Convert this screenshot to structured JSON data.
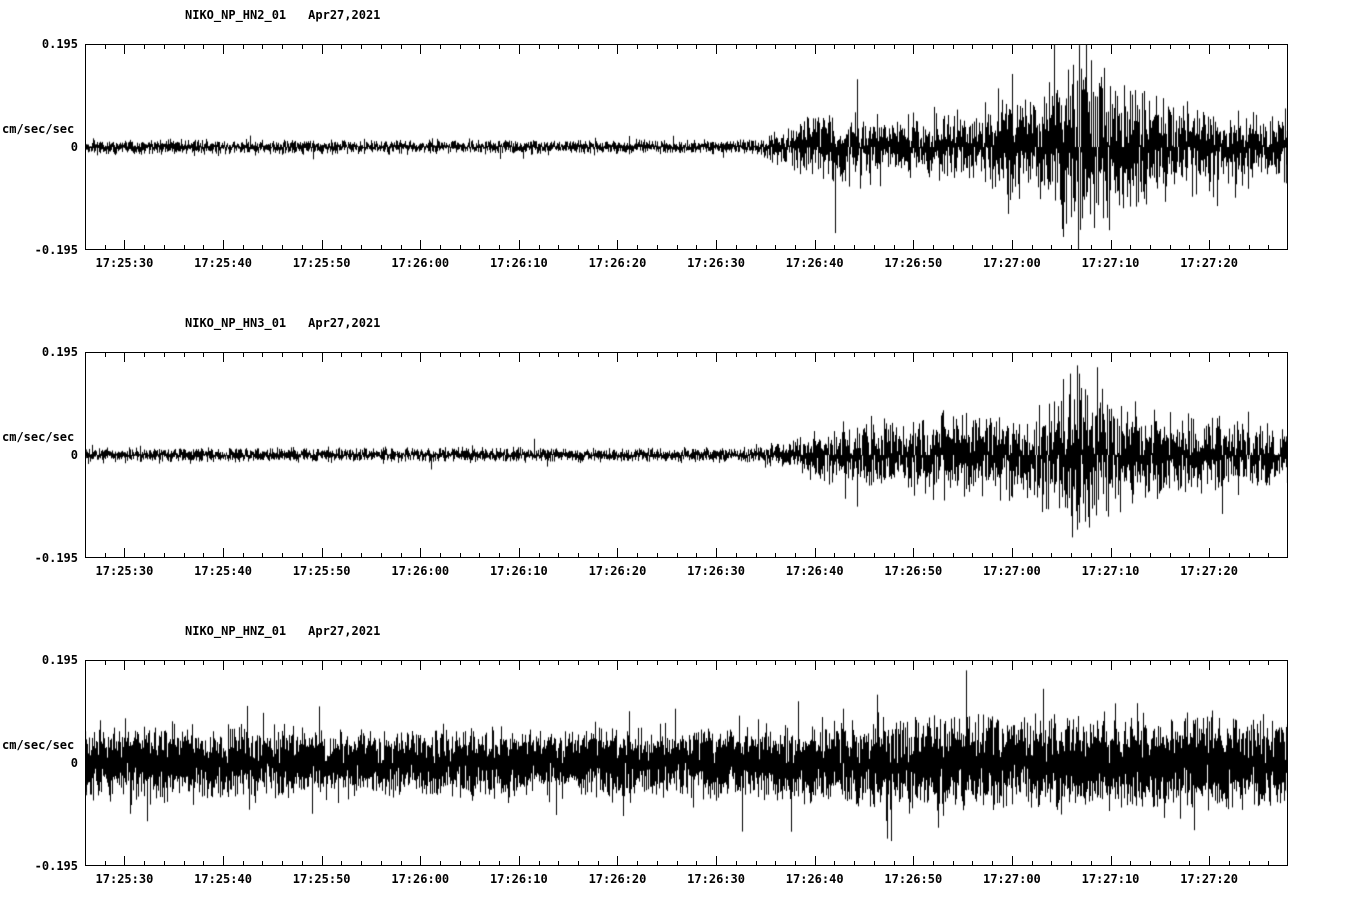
{
  "page": {
    "background": "#ffffff",
    "text_color": "#000000"
  },
  "chart_data": [
    {
      "type": "line",
      "subtype": "seismogram",
      "station": "NIKO_NP_HN2_01",
      "date_label": "Apr27,2021",
      "ylabel": "cm/sec/sec",
      "ylim": [
        -0.195,
        0.195
      ],
      "yticks": [
        {
          "value": 0.195,
          "label": "0.195"
        },
        {
          "value": 0,
          "label": "0"
        },
        {
          "value": -0.195,
          "label": "-0.195"
        }
      ],
      "x_window": {
        "start_seconds": 62726,
        "end_seconds": 62848
      },
      "xtick_minor_interval_seconds": 2,
      "xtick_major_interval_seconds": 10,
      "xtick_labels": [
        {
          "seconds": 62730,
          "label": "17:25:30"
        },
        {
          "seconds": 62740,
          "label": "17:25:40"
        },
        {
          "seconds": 62750,
          "label": "17:25:50"
        },
        {
          "seconds": 62760,
          "label": "17:26:00"
        },
        {
          "seconds": 62770,
          "label": "17:26:10"
        },
        {
          "seconds": 62780,
          "label": "17:26:20"
        },
        {
          "seconds": 62790,
          "label": "17:26:30"
        },
        {
          "seconds": 62800,
          "label": "17:26:40"
        },
        {
          "seconds": 62810,
          "label": "17:26:50"
        },
        {
          "seconds": 62820,
          "label": "17:27:00"
        },
        {
          "seconds": 62830,
          "label": "17:27:10"
        },
        {
          "seconds": 62840,
          "label": "17:27:20"
        }
      ],
      "trace_color": "#000000",
      "envelope_points": [
        [
          0.0,
          0.01
        ],
        [
          0.54,
          0.01
        ],
        [
          0.565,
          0.013
        ],
        [
          0.585,
          0.03
        ],
        [
          0.6,
          0.048
        ],
        [
          0.625,
          0.052
        ],
        [
          0.66,
          0.042
        ],
        [
          0.7,
          0.045
        ],
        [
          0.73,
          0.05
        ],
        [
          0.762,
          0.055
        ],
        [
          0.77,
          0.11
        ],
        [
          0.778,
          0.06
        ],
        [
          0.795,
          0.075
        ],
        [
          0.81,
          0.12
        ],
        [
          0.822,
          0.17
        ],
        [
          0.838,
          0.13
        ],
        [
          0.855,
          0.095
        ],
        [
          0.885,
          0.075
        ],
        [
          0.92,
          0.06
        ],
        [
          0.96,
          0.052
        ],
        [
          1.0,
          0.05
        ]
      ]
    },
    {
      "type": "line",
      "subtype": "seismogram",
      "station": "NIKO_NP_HN3_01",
      "date_label": "Apr27,2021",
      "ylabel": "cm/sec/sec",
      "ylim": [
        -0.195,
        0.195
      ],
      "yticks": [
        {
          "value": 0.195,
          "label": "0.195"
        },
        {
          "value": 0,
          "label": "0"
        },
        {
          "value": -0.195,
          "label": "-0.195"
        }
      ],
      "x_window": {
        "start_seconds": 62726,
        "end_seconds": 62848
      },
      "xtick_minor_interval_seconds": 2,
      "xtick_major_interval_seconds": 10,
      "xtick_labels": [
        {
          "seconds": 62730,
          "label": "17:25:30"
        },
        {
          "seconds": 62740,
          "label": "17:25:40"
        },
        {
          "seconds": 62750,
          "label": "17:25:50"
        },
        {
          "seconds": 62760,
          "label": "17:26:00"
        },
        {
          "seconds": 62770,
          "label": "17:26:10"
        },
        {
          "seconds": 62780,
          "label": "17:26:20"
        },
        {
          "seconds": 62790,
          "label": "17:26:30"
        },
        {
          "seconds": 62800,
          "label": "17:26:40"
        },
        {
          "seconds": 62810,
          "label": "17:26:50"
        },
        {
          "seconds": 62820,
          "label": "17:27:00"
        },
        {
          "seconds": 62830,
          "label": "17:27:10"
        },
        {
          "seconds": 62840,
          "label": "17:27:20"
        }
      ],
      "trace_color": "#000000",
      "envelope_points": [
        [
          0.0,
          0.01
        ],
        [
          0.54,
          0.01
        ],
        [
          0.57,
          0.015
        ],
        [
          0.6,
          0.03
        ],
        [
          0.63,
          0.042
        ],
        [
          0.67,
          0.048
        ],
        [
          0.71,
          0.052
        ],
        [
          0.75,
          0.058
        ],
        [
          0.79,
          0.062
        ],
        [
          0.812,
          0.085
        ],
        [
          0.824,
          0.13
        ],
        [
          0.836,
          0.09
        ],
        [
          0.86,
          0.07
        ],
        [
          0.9,
          0.055
        ],
        [
          0.95,
          0.048
        ],
        [
          1.0,
          0.045
        ]
      ]
    },
    {
      "type": "line",
      "subtype": "seismogram",
      "station": "NIKO_NP_HNZ_01",
      "date_label": "Apr27,2021",
      "ylabel": "cm/sec/sec",
      "ylim": [
        -0.195,
        0.195
      ],
      "yticks": [
        {
          "value": 0.195,
          "label": "0.195"
        },
        {
          "value": 0,
          "label": "0"
        },
        {
          "value": -0.195,
          "label": "-0.195"
        }
      ],
      "x_window": {
        "start_seconds": 62726,
        "end_seconds": 62848
      },
      "xtick_minor_interval_seconds": 2,
      "xtick_major_interval_seconds": 10,
      "xtick_labels": [
        {
          "seconds": 62730,
          "label": "17:25:30"
        },
        {
          "seconds": 62740,
          "label": "17:25:40"
        },
        {
          "seconds": 62750,
          "label": "17:25:50"
        },
        {
          "seconds": 62760,
          "label": "17:26:00"
        },
        {
          "seconds": 62770,
          "label": "17:26:10"
        },
        {
          "seconds": 62780,
          "label": "17:26:20"
        },
        {
          "seconds": 62790,
          "label": "17:26:30"
        },
        {
          "seconds": 62800,
          "label": "17:26:40"
        },
        {
          "seconds": 62810,
          "label": "17:26:50"
        },
        {
          "seconds": 62820,
          "label": "17:27:00"
        },
        {
          "seconds": 62830,
          "label": "17:27:10"
        },
        {
          "seconds": 62840,
          "label": "17:27:20"
        }
      ],
      "trace_color": "#000000",
      "envelope_points": [
        [
          0.0,
          0.048
        ],
        [
          0.03,
          0.055
        ],
        [
          0.06,
          0.05
        ],
        [
          0.15,
          0.046
        ],
        [
          0.3,
          0.044
        ],
        [
          0.45,
          0.046
        ],
        [
          0.55,
          0.05
        ],
        [
          0.62,
          0.058
        ],
        [
          0.7,
          0.062
        ],
        [
          0.78,
          0.066
        ],
        [
          0.85,
          0.062
        ],
        [
          0.93,
          0.063
        ],
        [
          1.0,
          0.062
        ]
      ]
    }
  ]
}
